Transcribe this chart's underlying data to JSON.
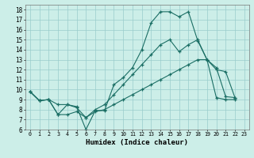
{
  "bg_color": "#cceee8",
  "grid_color": "#99cccc",
  "line_color": "#1a6e64",
  "xlabel": "Humidex (Indice chaleur)",
  "xlim_min": -0.5,
  "xlim_max": 23.5,
  "ylim_min": 6,
  "ylim_max": 18.5,
  "xticks": [
    0,
    1,
    2,
    3,
    4,
    5,
    6,
    7,
    8,
    9,
    10,
    11,
    12,
    13,
    14,
    15,
    16,
    17,
    18,
    19,
    20,
    21,
    22,
    23
  ],
  "yticks": [
    6,
    7,
    8,
    9,
    10,
    11,
    12,
    13,
    14,
    15,
    16,
    17,
    18
  ],
  "line1_x": [
    0,
    1,
    2,
    3,
    4,
    5,
    6,
    7,
    8,
    9,
    10,
    11,
    12,
    13,
    14,
    15,
    16,
    17,
    18,
    19,
    20,
    21,
    22
  ],
  "line1_y": [
    9.8,
    8.9,
    9.0,
    8.5,
    8.5,
    8.3,
    6.0,
    7.9,
    7.9,
    10.5,
    11.2,
    12.2,
    14.0,
    16.7,
    17.8,
    17.8,
    17.3,
    17.8,
    14.9,
    13.0,
    12.0,
    11.8,
    9.2
  ],
  "line2_x": [
    0,
    1,
    2,
    3,
    4,
    5,
    6,
    7,
    8,
    9,
    10,
    11,
    12,
    13,
    14,
    15,
    16,
    17,
    18,
    19,
    20,
    21,
    22
  ],
  "line2_y": [
    9.8,
    8.9,
    9.0,
    7.5,
    8.5,
    8.2,
    7.2,
    8.0,
    8.5,
    9.5,
    10.5,
    11.5,
    12.5,
    13.5,
    14.5,
    15.0,
    13.8,
    14.5,
    15.0,
    13.0,
    12.2,
    9.3,
    9.2
  ],
  "line3_x": [
    0,
    1,
    2,
    3,
    4,
    5,
    6,
    7,
    8,
    9,
    10,
    11,
    12,
    13,
    14,
    15,
    16,
    17,
    18,
    19,
    20,
    21,
    22
  ],
  "line3_y": [
    9.8,
    8.9,
    9.0,
    7.5,
    7.5,
    7.8,
    7.2,
    7.8,
    8.0,
    8.5,
    9.0,
    9.5,
    10.0,
    10.5,
    11.0,
    11.5,
    12.0,
    12.5,
    13.0,
    13.0,
    9.2,
    9.0,
    9.0
  ]
}
